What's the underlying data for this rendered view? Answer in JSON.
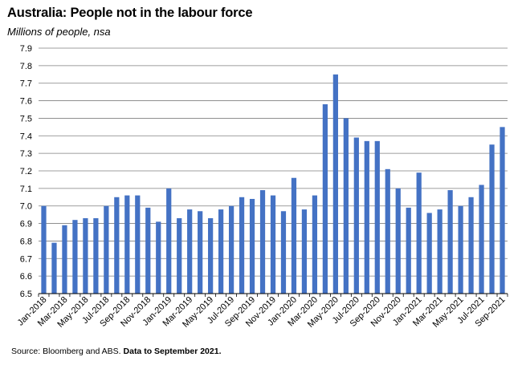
{
  "title": "Australia: People not in the labour force",
  "subtitle": "Millions of people, nsa",
  "source": {
    "text": "Source: Bloomberg and ABS.",
    "bold": "Data to September 2021."
  },
  "colors": {
    "bar": "#4472C4",
    "grid": "#7f7f7f",
    "axis": "#000000"
  },
  "chart_data": {
    "type": "bar",
    "title": "Australia: People not in the labour force",
    "subtitle": "Millions of people, nsa",
    "xlabel": "",
    "ylabel": "",
    "ylim": [
      6.5,
      7.9
    ],
    "yticks": [
      6.5,
      6.6,
      6.7,
      6.8,
      6.9,
      7.0,
      7.1,
      7.2,
      7.3,
      7.4,
      7.5,
      7.6,
      7.7,
      7.8,
      7.9
    ],
    "grid": true,
    "legend": "none",
    "categories": [
      "Jan-2018",
      "Feb-2018",
      "Mar-2018",
      "Apr-2018",
      "May-2018",
      "Jun-2018",
      "Jul-2018",
      "Aug-2018",
      "Sep-2018",
      "Oct-2018",
      "Nov-2018",
      "Dec-2018",
      "Jan-2019",
      "Feb-2019",
      "Mar-2019",
      "Apr-2019",
      "May-2019",
      "Jun-2019",
      "Jul-2019",
      "Aug-2019",
      "Sep-2019",
      "Oct-2019",
      "Nov-2019",
      "Dec-2019",
      "Jan-2020",
      "Feb-2020",
      "Mar-2020",
      "Apr-2020",
      "May-2020",
      "Jun-2020",
      "Jul-2020",
      "Aug-2020",
      "Sep-2020",
      "Oct-2020",
      "Nov-2020",
      "Dec-2020",
      "Jan-2021",
      "Feb-2021",
      "Mar-2021",
      "Apr-2021",
      "May-2021",
      "Jun-2021",
      "Jul-2021",
      "Aug-2021",
      "Sep-2021"
    ],
    "tick_labels": [
      "Jan-2018",
      "Mar-2018",
      "May-2018",
      "Jul-2018",
      "Sep-2018",
      "Nov-2018",
      "Jan-2019",
      "Mar-2019",
      "May-2019",
      "Jul-2019",
      "Sep-2019",
      "Nov-2019",
      "Jan-2020",
      "Mar-2020",
      "May-2020",
      "Jul-2020",
      "Sep-2020",
      "Nov-2020",
      "Jan-2021",
      "Mar-2021",
      "May-2021",
      "Jul-2021",
      "Sep-2021"
    ],
    "values": [
      7.0,
      6.79,
      6.89,
      6.92,
      6.93,
      6.93,
      7.0,
      7.05,
      7.06,
      7.06,
      6.99,
      6.91,
      7.1,
      6.93,
      6.98,
      6.97,
      6.93,
      6.98,
      7.0,
      7.05,
      7.04,
      7.09,
      7.06,
      6.97,
      7.16,
      6.98,
      7.06,
      7.58,
      7.75,
      7.5,
      7.39,
      7.37,
      7.37,
      7.21,
      7.1,
      6.99,
      7.19,
      6.96,
      6.98,
      7.09,
      7.0,
      7.05,
      7.12,
      7.35,
      7.45
    ]
  }
}
